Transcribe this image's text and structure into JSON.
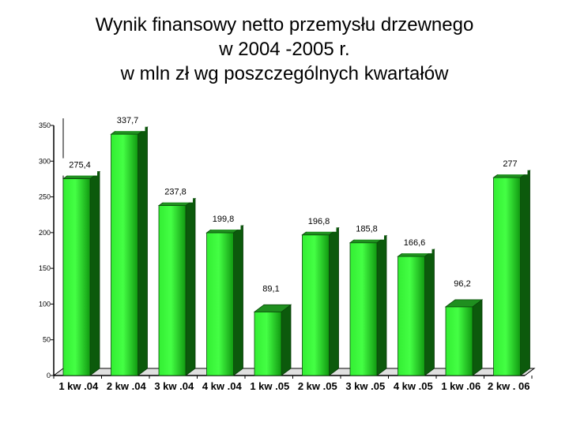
{
  "title_lines": [
    "Wynik finansowy netto przemysłu drzewnego",
    "w 2004 -2005 r.",
    "w mln zł wg poszczególnych kwartałów"
  ],
  "chart_data": {
    "type": "bar",
    "title": "Wynik finansowy netto przemysłu drzewnego w 2004 -2005 r. w mln zł wg poszczególnych kwartałów",
    "categories": [
      "1 kw .04",
      "2 kw .04",
      "3 kw .04",
      "4 kw .04",
      "1 kw .05",
      "2 kw .05",
      "3 kw .05",
      "4 kw .05",
      "1 kw .06",
      "2 kw . 06"
    ],
    "values": [
      275.4,
      337.7,
      237.8,
      199.8,
      89.1,
      196.8,
      185.8,
      166.6,
      96.2,
      277
    ],
    "value_labels": [
      "275,4",
      "337,7",
      "237,8",
      "199,8",
      "89,1",
      "196,8",
      "185,8",
      "166,6",
      "96,2",
      "277"
    ],
    "yticks": [
      0,
      50,
      100,
      150,
      200,
      250,
      300,
      350
    ],
    "ylim": [
      0,
      350
    ],
    "grid": false,
    "legend": "none",
    "xlabel": "",
    "ylabel": "",
    "colors": {
      "bar_light": "#33ff33",
      "bar_mid": "#22cc22",
      "bar_dark": "#117711",
      "bar_side": "#0c5a0c",
      "bar_top": "#1f8f1f",
      "axis": "#000000",
      "floor": "#e0e0e0"
    }
  }
}
